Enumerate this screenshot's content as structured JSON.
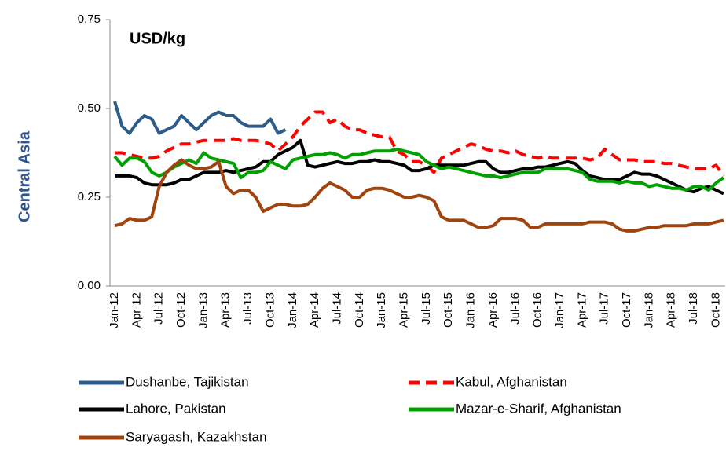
{
  "chart_data": {
    "type": "line",
    "annotation": "USD/kg",
    "y_label": "Central Asia",
    "categories": [
      "Jan-12",
      null,
      null,
      "Apr-12",
      null,
      null,
      "Jul-12",
      null,
      null,
      "Oct-12",
      null,
      null,
      "Jan-13",
      null,
      null,
      "Apr-13",
      null,
      null,
      "Jul-13",
      null,
      null,
      "Oct-13",
      null,
      null,
      "Jan-14",
      null,
      null,
      "Apr-14",
      null,
      null,
      "Jul-14",
      null,
      null,
      "Oct-14",
      null,
      null,
      "Jan-15",
      null,
      null,
      "Apr-15",
      null,
      null,
      "Jul-15",
      null,
      null,
      "Oct-15",
      null,
      null,
      "Jan-16",
      null,
      null,
      "Apr-16",
      null,
      null,
      "Jul-16",
      null,
      null,
      "Oct-16",
      null,
      null,
      "Jan-17",
      null,
      null,
      "Apr-17",
      null,
      null,
      "Jul-17",
      null,
      null,
      "Oct-17",
      null,
      null,
      "Jan-18",
      null,
      null,
      "Apr-18",
      null,
      null,
      "Jul-18",
      null,
      null,
      "Oct-18",
      null
    ],
    "ylim": [
      0,
      0.75
    ],
    "yticks": [
      {
        "value": 0,
        "label": "0.00"
      },
      {
        "value": 0.25,
        "label": "0.25"
      },
      {
        "value": 0.5,
        "label": "0.50"
      },
      {
        "value": 0.75,
        "label": "0.75"
      }
    ],
    "series": [
      {
        "name": "Dushanbe, Tajikistan",
        "color": "#2e5c8a",
        "dashed": false,
        "values": [
          0.52,
          0.45,
          0.43,
          0.46,
          0.48,
          0.47,
          0.43,
          0.44,
          0.45,
          0.48,
          0.46,
          0.44,
          0.46,
          0.48,
          0.49,
          0.48,
          0.48,
          0.46,
          0.45,
          0.45,
          0.45,
          0.47,
          0.43,
          0.44,
          null,
          null,
          null,
          null,
          null,
          null,
          null,
          null,
          null,
          null,
          null,
          null,
          null,
          null,
          null,
          null,
          null,
          null,
          null,
          null,
          null,
          null,
          null,
          null,
          null,
          null,
          null,
          null,
          null,
          null,
          null,
          null,
          null,
          null,
          null,
          null,
          null,
          null,
          null,
          null,
          null,
          null,
          null,
          null,
          null,
          null,
          null,
          null,
          null,
          null,
          null,
          null,
          null,
          null,
          null,
          null,
          null,
          null,
          null
        ]
      },
      {
        "name": "Kabul, Afghanistan",
        "color": "#ff0000",
        "dashed": true,
        "values": [
          0.375,
          0.375,
          0.37,
          0.365,
          0.36,
          0.36,
          0.365,
          0.38,
          0.39,
          0.4,
          0.4,
          0.405,
          0.41,
          0.41,
          0.41,
          0.41,
          0.415,
          0.41,
          0.41,
          0.41,
          0.405,
          0.4,
          0.38,
          0.4,
          0.42,
          0.45,
          0.47,
          0.49,
          0.49,
          0.46,
          0.47,
          0.45,
          0.44,
          0.44,
          0.43,
          0.425,
          0.42,
          0.42,
          0.38,
          0.37,
          0.35,
          0.35,
          0.34,
          0.32,
          0.36,
          0.37,
          0.38,
          0.39,
          0.4,
          0.395,
          0.385,
          0.38,
          0.38,
          0.375,
          0.38,
          0.37,
          0.365,
          0.36,
          0.365,
          0.36,
          0.36,
          0.36,
          0.36,
          0.36,
          0.355,
          0.36,
          0.385,
          0.37,
          0.355,
          0.355,
          0.355,
          0.35,
          0.35,
          0.35,
          0.345,
          0.345,
          0.34,
          0.335,
          0.33,
          0.33,
          0.33,
          0.34,
          0.31
        ]
      },
      {
        "name": "Lahore, Pakistan",
        "color": "#000000",
        "dashed": false,
        "values": [
          0.31,
          0.31,
          0.31,
          0.305,
          0.29,
          0.285,
          0.285,
          0.285,
          0.29,
          0.3,
          0.3,
          0.31,
          0.32,
          0.32,
          0.32,
          0.325,
          0.32,
          0.325,
          0.33,
          0.335,
          0.35,
          0.35,
          0.37,
          0.38,
          0.39,
          0.41,
          0.34,
          0.335,
          0.34,
          0.345,
          0.35,
          0.345,
          0.345,
          0.35,
          0.35,
          0.355,
          0.35,
          0.35,
          0.345,
          0.34,
          0.325,
          0.325,
          0.33,
          0.34,
          0.34,
          0.34,
          0.34,
          0.34,
          0.345,
          0.35,
          0.35,
          0.33,
          0.32,
          0.32,
          0.325,
          0.33,
          0.33,
          0.335,
          0.335,
          0.34,
          0.345,
          0.35,
          0.345,
          0.325,
          0.31,
          0.305,
          0.3,
          0.3,
          0.3,
          0.31,
          0.32,
          0.315,
          0.315,
          0.31,
          0.3,
          0.29,
          0.28,
          0.27,
          0.265,
          0.275,
          0.28,
          0.27,
          0.26
        ]
      },
      {
        "name": "Mazar-e-Sharif, Afghanistan",
        "color": "#00a000",
        "dashed": false,
        "values": [
          0.365,
          0.34,
          0.36,
          0.36,
          0.35,
          0.32,
          0.31,
          0.32,
          0.335,
          0.345,
          0.355,
          0.345,
          0.375,
          0.36,
          0.355,
          0.35,
          0.345,
          0.305,
          0.32,
          0.32,
          0.325,
          0.35,
          0.34,
          0.33,
          0.355,
          0.36,
          0.365,
          0.37,
          0.37,
          0.375,
          0.37,
          0.36,
          0.37,
          0.37,
          0.375,
          0.38,
          0.38,
          0.38,
          0.385,
          0.38,
          0.375,
          0.37,
          0.35,
          0.34,
          0.33,
          0.335,
          0.33,
          0.325,
          0.32,
          0.315,
          0.31,
          0.31,
          0.305,
          0.31,
          0.315,
          0.32,
          0.32,
          0.32,
          0.33,
          0.33,
          0.33,
          0.33,
          0.325,
          0.32,
          0.3,
          0.295,
          0.295,
          0.295,
          0.29,
          0.295,
          0.29,
          0.29,
          0.28,
          0.285,
          0.28,
          0.275,
          0.275,
          0.27,
          0.28,
          0.28,
          0.27,
          0.29,
          0.305
        ]
      },
      {
        "name": "Saryagash, Kazakhstan",
        "color": "#a0440f",
        "dashed": false,
        "values": [
          0.17,
          0.175,
          0.19,
          0.185,
          0.185,
          0.195,
          0.28,
          0.32,
          0.34,
          0.355,
          0.34,
          0.33,
          0.33,
          0.335,
          0.35,
          0.28,
          0.26,
          0.27,
          0.27,
          0.25,
          0.21,
          0.22,
          0.23,
          0.23,
          0.225,
          0.225,
          0.23,
          0.25,
          0.275,
          0.29,
          0.28,
          0.27,
          0.25,
          0.25,
          0.27,
          0.275,
          0.275,
          0.27,
          0.26,
          0.25,
          0.25,
          0.255,
          0.25,
          0.24,
          0.195,
          0.185,
          0.185,
          0.185,
          0.175,
          0.165,
          0.165,
          0.17,
          0.19,
          0.19,
          0.19,
          0.185,
          0.165,
          0.165,
          0.175,
          0.175,
          0.175,
          0.175,
          0.175,
          0.175,
          0.18,
          0.18,
          0.18,
          0.175,
          0.16,
          0.155,
          0.155,
          0.16,
          0.165,
          0.165,
          0.17,
          0.17,
          0.17,
          0.17,
          0.175,
          0.175,
          0.175,
          0.18,
          0.185
        ]
      }
    ]
  }
}
